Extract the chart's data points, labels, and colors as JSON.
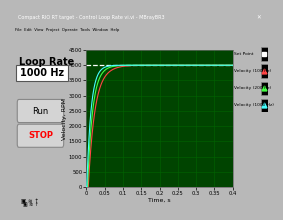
{
  "title": "Compact RIO RT target - Control Loop Rate vi.vi - MBrayBR3",
  "window_bg": "#b8b8b8",
  "toolbar_bg": "#c8c8c8",
  "plot_bg": "#004400",
  "grid_color": "#006600",
  "xlabel": "Time, s",
  "ylabel": "Velocity, RPM",
  "xlim": [
    0,
    0.4
  ],
  "ylim": [
    0,
    4500
  ],
  "xticks": [
    0,
    0.05,
    0.1,
    0.15,
    0.2,
    0.25,
    0.3,
    0.35,
    0.4
  ],
  "yticks": [
    0,
    500,
    1000,
    1500,
    2000,
    2500,
    3000,
    3500,
    4000,
    4500
  ],
  "set_point": 4000,
  "sp_color": "#ffffff",
  "v100_color": "#ff4444",
  "v200_color": "#44ff44",
  "v1000_color": "#44ffff",
  "legend_labels": [
    "Set Point",
    "Velocity (100 Hz)",
    "Velocity (200 Hz)",
    "Velocity (1000 Hz)"
  ],
  "loop_rate_label": "Loop Rate",
  "loop_rate_value": "1000 Hz",
  "run_button": "Run",
  "stop_button": "STOP"
}
